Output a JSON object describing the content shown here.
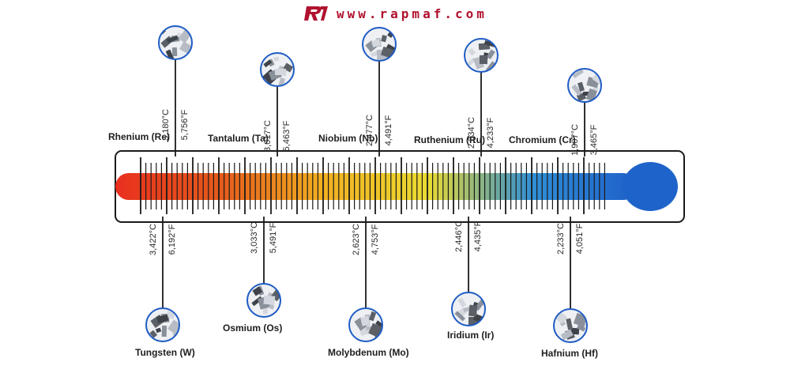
{
  "header": {
    "logo_icon": "rapmaf-logo-icon",
    "site_url": "www.rapmaf.com",
    "brand_color": "#b0122e"
  },
  "thermometer": {
    "gradient_colors": [
      "#e8301f",
      "#e65a1b",
      "#f2b021",
      "#eadb32",
      "#2f8fd6",
      "#1f5fc8"
    ],
    "bulb_color": "#1e63c9"
  },
  "metals": [
    {
      "name": "Rhenium (Re)",
      "celsius": "3,180°C",
      "fahrenheit": "5,756°F",
      "side": "top",
      "icon": "rhenium-sample-icon"
    },
    {
      "name": "Tantalum (Ta)",
      "celsius": "3,017°C",
      "fahrenheit": "5,463°F",
      "side": "top",
      "icon": "tantalum-sample-icon"
    },
    {
      "name": "Niobium (Nb)",
      "celsius": "2,477°C",
      "fahrenheit": "4,491°F",
      "side": "top",
      "icon": "niobium-sample-icon"
    },
    {
      "name": "Ruthenium (Ru)",
      "celsius": "2,334°C",
      "fahrenheit": "4,233°F",
      "side": "top",
      "icon": "ruthenium-sample-icon"
    },
    {
      "name": "Chromium (Cr)",
      "celsius": "1,907°C",
      "fahrenheit": "3,465°F",
      "side": "top",
      "icon": "chromium-sample-icon"
    },
    {
      "name": "Tungsten (W)",
      "celsius": "3,422°C",
      "fahrenheit": "6,192°F",
      "side": "bottom",
      "icon": "tungsten-sample-icon"
    },
    {
      "name": "Osmium (Os)",
      "celsius": "3,033°C",
      "fahrenheit": "5,491°F",
      "side": "bottom",
      "icon": "osmium-sample-icon"
    },
    {
      "name": "Molybdenum (Mo)",
      "celsius": "2,623°C",
      "fahrenheit": "4,753°F",
      "side": "bottom",
      "icon": "molybdenum-sample-icon"
    },
    {
      "name": "Iridium (Ir)",
      "celsius": "2,446°C",
      "fahrenheit": "4,435°F",
      "side": "bottom",
      "icon": "iridium-sample-icon"
    },
    {
      "name": "Hafnium (Hf)",
      "celsius": "2,233°C",
      "fahrenheit": "4,051°F",
      "side": "bottom",
      "icon": "hafnium-sample-icon"
    }
  ]
}
